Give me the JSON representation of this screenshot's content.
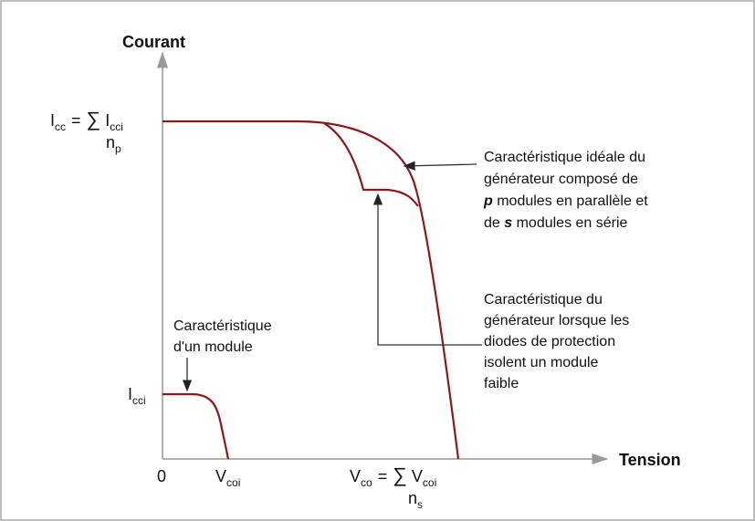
{
  "axes": {
    "y_label": "Courant",
    "x_label": "Tension",
    "origin": "0"
  },
  "labels": {
    "icc_total": {
      "main": "I",
      "sub": "cc",
      "equals": "=",
      "sum": "∑",
      "term": "I",
      "term_sub": "cci",
      "under": "n",
      "under_sub": "p"
    },
    "icci": {
      "main": "I",
      "sub": "cci"
    },
    "vcoi": {
      "main": "V",
      "sub": "coi"
    },
    "vco_total": {
      "main": "V",
      "sub": "co",
      "equals": "=",
      "sum": "∑",
      "term": "V",
      "term_sub": "coi",
      "under": "n",
      "under_sub": "s"
    }
  },
  "annotations": {
    "ideal": [
      "Caractéristique idéale du",
      "générateur composé de",
      {
        "bold": "p",
        "after": " modules en parallèle et"
      },
      {
        "before": "de ",
        "bold": "s",
        "after": " modules en série"
      }
    ],
    "protected": [
      "Caractéristique du",
      "générateur lorsque les",
      "diodes de protection",
      "isolent un module",
      "faible"
    ],
    "module": [
      "Caractéristique",
      "d'un module"
    ]
  }
}
